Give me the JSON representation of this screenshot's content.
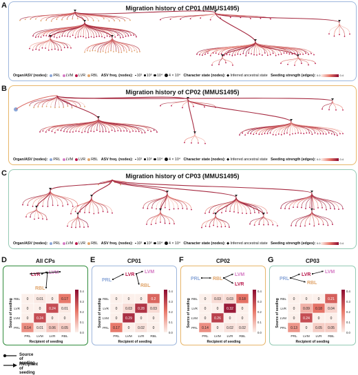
{
  "colors": {
    "PRL": "#8aa6d8",
    "LVM": "#d57ac4",
    "LVR": "#b8164a",
    "RBL": "#e0a46a",
    "border_A": "#9db6dc",
    "border_B": "#e7b568",
    "border_C": "#93c9b3",
    "border_D": "#2e8a3a",
    "border_E": "#9db6dc",
    "border_F": "#e7b568",
    "border_G": "#93c9b3"
  },
  "trees": [
    {
      "letter": "A",
      "title": "Migration history of CP01 (MMUS1495)"
    },
    {
      "letter": "B",
      "title": "Migration history of CP02 (MMUS1495)"
    },
    {
      "letter": "C",
      "title": "Migration history of CP03 (MMUS1495)"
    }
  ],
  "legend": {
    "organ_label": "Organ/ASV (nodes):",
    "organs": [
      "PRL",
      "LVM",
      "LVR",
      "RBL"
    ],
    "asv_label": "ASV freq. (nodes):",
    "asv_items": [
      "10²",
      "10³",
      "10⁴",
      "4 × 10⁴"
    ],
    "char_label": "Character state (nodes):",
    "char_item": "Inferred ancestral state",
    "seed_label": "Seeding strength (edges):",
    "seed_min": "0.0",
    "seed_max": "0.4"
  },
  "heatmaps": [
    {
      "letter": "D",
      "title": "All CPs",
      "values": [
        [
          0,
          0.01,
          0,
          0.17
        ],
        [
          0,
          0,
          0.24,
          0.01
        ],
        [
          0,
          0.24,
          0,
          0
        ],
        [
          0.14,
          0.01,
          0.06,
          0.05
        ]
      ]
    },
    {
      "letter": "E",
      "title": "CP01",
      "values": [
        [
          0,
          0,
          0,
          0.2
        ],
        [
          0,
          0.03,
          0.28,
          0.03
        ],
        [
          0,
          0.29,
          0,
          0
        ],
        [
          0.17,
          0,
          0.02,
          0
        ]
      ]
    },
    {
      "letter": "F",
      "title": "CP02",
      "values": [
        [
          0,
          0.03,
          0.03,
          0.18
        ],
        [
          0,
          0,
          0.32,
          0
        ],
        [
          0,
          0.26,
          0,
          0
        ],
        [
          0.14,
          0,
          0.02,
          0.02
        ]
      ]
    },
    {
      "letter": "G",
      "title": "CP03",
      "values": [
        [
          0,
          0,
          0,
          0.21
        ],
        [
          0,
          0.09,
          0.18,
          0.04
        ],
        [
          0,
          0.24,
          0,
          0
        ],
        [
          0.13,
          0,
          0.05,
          0.05
        ]
      ]
    }
  ],
  "heatmap_labels": {
    "categories": [
      "PRL",
      "LVM",
      "LVR",
      "RBL"
    ],
    "ylabel": "Source of seeding",
    "xlabel": "Recipient of seeding",
    "cbar_ticks": [
      "0.4",
      "0.3",
      "0.2",
      "0.1",
      "0.0"
    ]
  },
  "footer": {
    "source": "Source of seeding",
    "recipient": "Recipient of seeding"
  }
}
